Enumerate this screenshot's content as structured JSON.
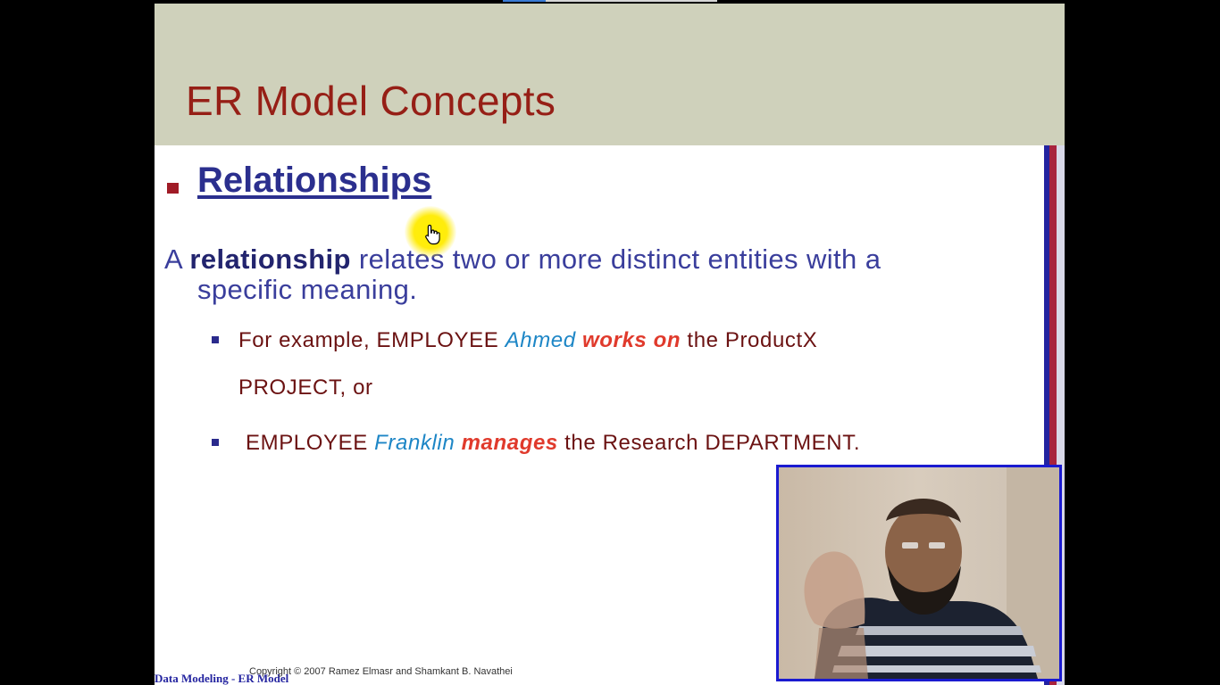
{
  "slide": {
    "title": "ER Model Concepts",
    "heading": "Relationships",
    "definition": {
      "prefix": "A",
      "term": "relationship",
      "rest_line1": "relates two or more distinct entities with a",
      "line2": "specific meaning."
    },
    "examples": [
      {
        "lead": "For example, EMPLOYEE",
        "entity": "Ahmed",
        "verb": "works on",
        "tail": "the ProductX",
        "continuation": "PROJECT, or"
      },
      {
        "lead": "EMPLOYEE",
        "entity": "Franklin",
        "verb": "manages",
        "tail": "the Research DEPARTMENT."
      }
    ],
    "footer": {
      "left": "Data Modeling - ER Model",
      "copyright": "Copyright © 2007 Ramez Elmasr and Shamkant B. Navathei"
    }
  },
  "colors": {
    "background": "#000000",
    "header_band": "#cfd1bb",
    "title": "#961f16",
    "heading": "#2b2f8e",
    "body_text": "#3a3e9c",
    "example_text": "#6b1212",
    "entity": "#1d86c6",
    "verb": "#e03a2c",
    "cursor_highlight": "#fff000"
  },
  "icons": {
    "cursor": "hand-pointer-icon",
    "bullet": "square-bullet-icon"
  }
}
